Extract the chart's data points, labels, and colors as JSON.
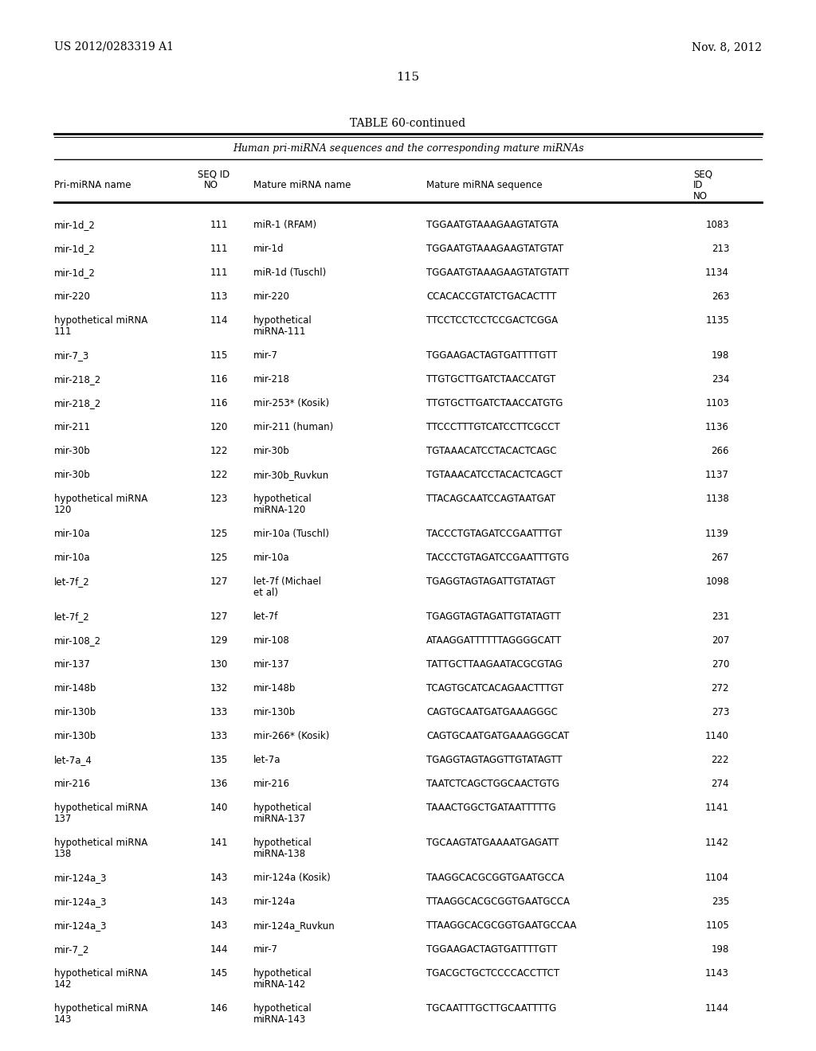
{
  "header_left": "US 2012/0283319 A1",
  "header_right": "Nov. 8, 2012",
  "page_number": "115",
  "table_title": "TABLE 60-continued",
  "table_subtitle": "Human pri-miRNA sequences and the corresponding mature miRNAs",
  "rows": [
    [
      "mir-1d_2",
      "111",
      "miR-1 (RFAM)",
      "TGGAATGTAAAGAAGTATGTA",
      "1083"
    ],
    [
      "mir-1d_2",
      "111",
      "mir-1d",
      "TGGAATGTAAAGAAGTATGTAT",
      "213"
    ],
    [
      "mir-1d_2",
      "111",
      "miR-1d (Tuschl)",
      "TGGAATGTAAAGAAGTATGTATT",
      "1134"
    ],
    [
      "mir-220",
      "113",
      "mir-220",
      "CCACACCGTATCTGACACTTT",
      "263"
    ],
    [
      "hypothetical miRNA\n111",
      "114",
      "hypothetical\nmiRNA-111",
      "TTCCTCCTCCTCCGACTCGGA",
      "1135"
    ],
    [
      "mir-7_3",
      "115",
      "mir-7",
      "TGGAAGACTAGTGATTTTGTT",
      "198"
    ],
    [
      "mir-218_2",
      "116",
      "mir-218",
      "TTGTGCTTGATCTAACCATGT",
      "234"
    ],
    [
      "mir-218_2",
      "116",
      "mir-253* (Kosik)",
      "TTGTGCTTGATCTAACCATGTG",
      "1103"
    ],
    [
      "mir-211",
      "120",
      "mir-211 (human)",
      "TTCCCTTTGTCATCCTTCGCCT",
      "1136"
    ],
    [
      "mir-30b",
      "122",
      "mir-30b",
      "TGTAAACATCCTACACTCAGC",
      "266"
    ],
    [
      "mir-30b",
      "122",
      "mir-30b_Ruvkun",
      "TGTAAACATCCTACACTCAGCT",
      "1137"
    ],
    [
      "hypothetical miRNA\n120",
      "123",
      "hypothetical\nmiRNA-120",
      "TTACAGCAATCCAGTAATGAT",
      "1138"
    ],
    [
      "mir-10a",
      "125",
      "mir-10a (Tuschl)",
      "TACCCTGTAGATCCGAATTTGT",
      "1139"
    ],
    [
      "mir-10a",
      "125",
      "mir-10a",
      "TACCCTGTAGATCCGAATTTGTG",
      "267"
    ],
    [
      "let-7f_2",
      "127",
      "let-7f (Michael\net al)",
      "TGAGGTAGTAGATTGTATAGT",
      "1098"
    ],
    [
      "let-7f_2",
      "127",
      "let-7f",
      "TGAGGTAGTAGATTGTATAGTT",
      "231"
    ],
    [
      "mir-108_2",
      "129",
      "mir-108",
      "ATAAGGATTTTTTAGGGGCATT",
      "207"
    ],
    [
      "mir-137",
      "130",
      "mir-137",
      "TATTGCTTAAGAATACGCGTAG",
      "270"
    ],
    [
      "mir-148b",
      "132",
      "mir-148b",
      "TCAGTGCATCACAGAACTTTGT",
      "272"
    ],
    [
      "mir-130b",
      "133",
      "mir-130b",
      "CAGTGCAATGATGAAAGGGC",
      "273"
    ],
    [
      "mir-130b",
      "133",
      "mir-266* (Kosik)",
      "CAGTGCAATGATGAAAGGGCAT",
      "1140"
    ],
    [
      "let-7a_4",
      "135",
      "let-7a",
      "TGAGGTAGTAGGTTGTATAGTT",
      "222"
    ],
    [
      "mir-216",
      "136",
      "mir-216",
      "TAATCTCAGCTGGCAACTGTG",
      "274"
    ],
    [
      "hypothetical miRNA\n137",
      "140",
      "hypothetical\nmiRNA-137",
      "TAAACTGGCTGATAATTTTTG",
      "1141"
    ],
    [
      "hypothetical miRNA\n138",
      "141",
      "hypothetical\nmiRNA-138",
      "TGCAAGTATGAAAATGAGATT",
      "1142"
    ],
    [
      "mir-124a_3",
      "143",
      "mir-124a (Kosik)",
      "TAAGGCACGCGGTGAATGCCA",
      "1104"
    ],
    [
      "mir-124a_3",
      "143",
      "mir-124a",
      "TTAAGGCACGCGGTGAATGCCA",
      "235"
    ],
    [
      "mir-124a_3",
      "143",
      "mir-124a_Ruvkun",
      "TTAAGGCACGCGGTGAATGCCAA",
      "1105"
    ],
    [
      "mir-7_2",
      "144",
      "mir-7",
      "TGGAAGACTAGTGATTTTGTT",
      "198"
    ],
    [
      "hypothetical miRNA\n142",
      "145",
      "hypothetical\nmiRNA-142",
      "TGACGCTGCTCCCCACCTTCT",
      "1143"
    ],
    [
      "hypothetical miRNA\n143",
      "146",
      "hypothetical\nmiRNA-143",
      "TGCAATTTGCTTGCAATTTTG",
      "1144"
    ]
  ],
  "bg_color": "#ffffff",
  "text_color": "#000000"
}
